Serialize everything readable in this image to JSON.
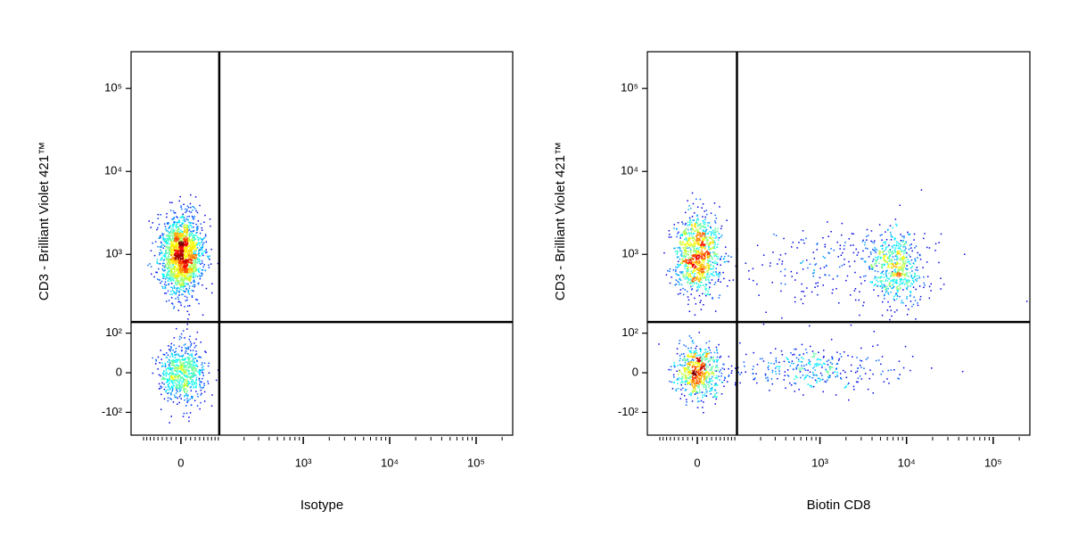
{
  "chart_data": [
    {
      "type": "scatter",
      "x_label": "Isotype",
      "y_label": "CD3 - Brilliant Violet 421™",
      "xscale": "arcsinh",
      "x_cofactor": 77,
      "yscale": "arcsinh",
      "y_cofactor": 75,
      "xlim": [
        -135,
        265000
      ],
      "ylim": [
        -205,
        277000
      ],
      "xticks": [
        0,
        {
          "value": 1000,
          "label": "10³"
        },
        {
          "value": 10000,
          "label": "10⁴"
        },
        {
          "value": 100000,
          "label": "10⁵"
        }
      ],
      "yticks": [
        {
          "value": -100,
          "label": "-10²"
        },
        0,
        {
          "value": 100,
          "label": "10²"
        },
        {
          "value": 1000,
          "label": "10³"
        },
        {
          "value": 10000,
          "label": "10⁴"
        },
        {
          "value": 100000,
          "label": "10⁵"
        }
      ],
      "gates": {
        "x": 93,
        "y": 144
      },
      "populations": [
        {
          "x": 0,
          "y": 1000,
          "x_spread": 0.28,
          "y_spread": 0.55,
          "count": 1800
        },
        {
          "x": 0,
          "y": 0,
          "x_spread": 0.3,
          "y_spread": 0.4,
          "count": 700
        }
      ]
    },
    {
      "type": "scatter",
      "x_label": "Biotin CD8",
      "y_label": "CD3 - Brilliant Violet 421™",
      "xscale": "arcsinh",
      "x_cofactor": 77,
      "yscale": "arcsinh",
      "y_cofactor": 75,
      "xlim": [
        -135,
        265000
      ],
      "ylim": [
        -205,
        277000
      ],
      "xticks": [
        0,
        {
          "value": 1000,
          "label": "10³"
        },
        {
          "value": 10000,
          "label": "10⁴"
        },
        {
          "value": 100000,
          "label": "10⁵"
        }
      ],
      "yticks": [
        {
          "value": -100,
          "label": "-10²"
        },
        0,
        {
          "value": 100,
          "label": "10²"
        },
        {
          "value": 1000,
          "label": "10³"
        },
        {
          "value": 10000,
          "label": "10⁴"
        },
        {
          "value": 100000,
          "label": "10⁵"
        }
      ],
      "gates": {
        "x": 97,
        "y": 144
      },
      "populations": [
        {
          "x": 0,
          "y": 1000,
          "x_spread": 0.3,
          "y_spread": 0.55,
          "count": 1000
        },
        {
          "x": 0,
          "y": 0,
          "x_spread": 0.32,
          "y_spread": 0.35,
          "count": 650
        },
        {
          "x": 7500,
          "y": 700,
          "x_spread": 0.33,
          "y_spread": 0.5,
          "count": 550
        },
        {
          "x": 900,
          "y": 10,
          "x_spread": 1.1,
          "y_spread": 0.3,
          "count": 320
        },
        {
          "x": 1500,
          "y": 800,
          "x_spread": 1.3,
          "y_spread": 0.6,
          "count": 230
        }
      ]
    }
  ]
}
